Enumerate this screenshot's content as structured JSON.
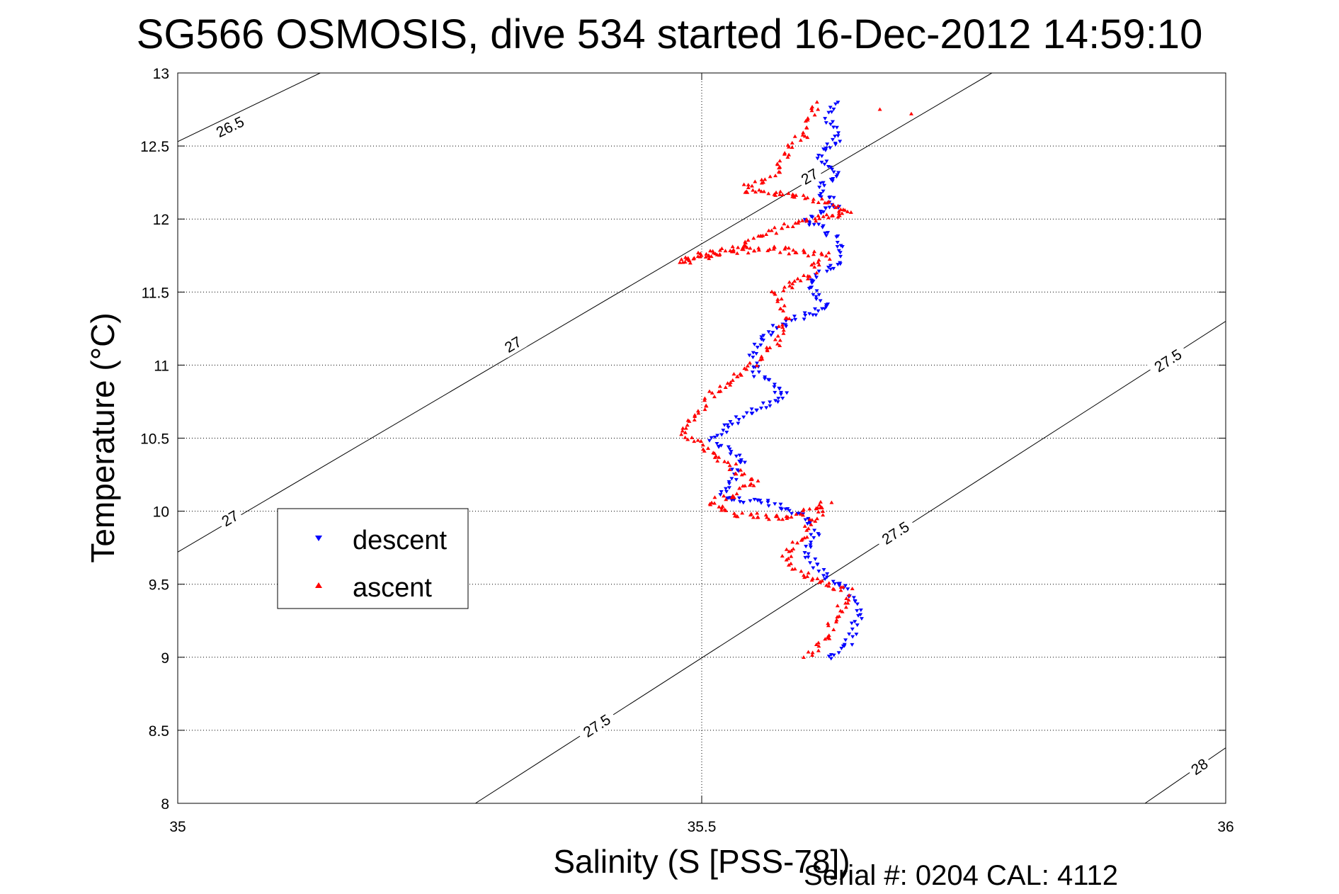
{
  "chart_data": {
    "type": "scatter",
    "title": "SG566 OSMOSIS, dive 534 started 16-Dec-2012 14:59:10",
    "xlabel": "Salinity (S [PSS-78])",
    "ylabel": "Temperature (°C)",
    "xlim": [
      35,
      36
    ],
    "ylim": [
      8,
      13
    ],
    "x_ticks": [
      35,
      35.5,
      36
    ],
    "x_tick_labels": [
      "35",
      "35.5",
      "36"
    ],
    "y_ticks": [
      8,
      8.5,
      9,
      9.5,
      10,
      10.5,
      11,
      11.5,
      12,
      12.5,
      13
    ],
    "y_tick_labels": [
      "8",
      "8.5",
      "9",
      "9.5",
      "10",
      "10.5",
      "11",
      "11.5",
      "12",
      "12.5",
      "13"
    ],
    "grid": true,
    "grid_style": "dotted",
    "legend": {
      "position": "left-middle",
      "entries": [
        "descent",
        "ascent"
      ]
    },
    "colors": {
      "descent": "#0000ff",
      "ascent": "#ff0000",
      "contour": "#000000",
      "grid": "#000000"
    },
    "series": [
      {
        "name": "descent",
        "marker": "downward-triangle",
        "color": "#0000ff",
        "path": [
          [
            35.62,
            9.0
          ],
          [
            35.64,
            9.1
          ],
          [
            35.65,
            9.3
          ],
          [
            35.64,
            9.45
          ],
          [
            35.62,
            9.55
          ],
          [
            35.6,
            9.7
          ],
          [
            35.61,
            9.85
          ],
          [
            35.6,
            9.95
          ],
          [
            35.57,
            10.05
          ],
          [
            35.52,
            10.1
          ],
          [
            35.53,
            10.25
          ],
          [
            35.54,
            10.35
          ],
          [
            35.51,
            10.5
          ],
          [
            35.54,
            10.65
          ],
          [
            35.58,
            10.8
          ],
          [
            35.55,
            10.95
          ],
          [
            35.55,
            11.1
          ],
          [
            35.57,
            11.25
          ],
          [
            35.62,
            11.4
          ],
          [
            35.6,
            11.55
          ],
          [
            35.63,
            11.7
          ],
          [
            35.63,
            11.85
          ],
          [
            35.6,
            12.0
          ],
          [
            35.63,
            12.1
          ],
          [
            35.61,
            12.2
          ],
          [
            35.63,
            12.3
          ],
          [
            35.61,
            12.45
          ],
          [
            35.63,
            12.55
          ],
          [
            35.62,
            12.7
          ],
          [
            35.63,
            12.8
          ]
        ]
      },
      {
        "name": "ascent",
        "marker": "upward-triangle",
        "color": "#ff0000",
        "path": [
          [
            35.6,
            9.0
          ],
          [
            35.62,
            9.15
          ],
          [
            35.63,
            9.3
          ],
          [
            35.64,
            9.45
          ],
          [
            35.6,
            9.55
          ],
          [
            35.58,
            9.7
          ],
          [
            35.6,
            9.85
          ],
          [
            35.62,
            10.05
          ],
          [
            35.58,
            9.95
          ],
          [
            35.53,
            9.98
          ],
          [
            35.51,
            10.05
          ],
          [
            35.55,
            10.2
          ],
          [
            35.52,
            10.35
          ],
          [
            35.5,
            10.45
          ],
          [
            35.48,
            10.55
          ],
          [
            35.5,
            10.7
          ],
          [
            35.51,
            10.8
          ],
          [
            35.53,
            10.9
          ],
          [
            35.55,
            11.0
          ],
          [
            35.57,
            11.15
          ],
          [
            35.58,
            11.3
          ],
          [
            35.57,
            11.5
          ],
          [
            35.6,
            11.6
          ],
          [
            35.62,
            11.75
          ],
          [
            35.56,
            11.8
          ],
          [
            35.5,
            11.75
          ],
          [
            35.48,
            11.7
          ],
          [
            35.53,
            11.8
          ],
          [
            35.58,
            11.95
          ],
          [
            35.64,
            12.05
          ],
          [
            35.6,
            12.15
          ],
          [
            35.54,
            12.2
          ],
          [
            35.57,
            12.3
          ],
          [
            35.58,
            12.45
          ],
          [
            35.6,
            12.6
          ],
          [
            35.61,
            12.8
          ]
        ],
        "outliers": [
          [
            35.67,
            12.75
          ],
          [
            35.7,
            12.72
          ]
        ]
      }
    ],
    "contours": [
      {
        "label": "26.5",
        "points": [
          [
            35.0,
            12.53
          ],
          [
            35.136,
            13.0
          ]
        ],
        "label_positions": [
          [
            35.05,
            12.63
          ]
        ]
      },
      {
        "label": "27",
        "points": [
          [
            35.0,
            9.72
          ],
          [
            35.777,
            13.0
          ]
        ],
        "label_positions": [
          [
            35.05,
            9.95
          ],
          [
            35.32,
            11.14
          ],
          [
            35.603,
            12.29
          ]
        ]
      },
      {
        "label": "27.5",
        "points": [
          [
            35.284,
            8.0
          ],
          [
            36.0,
            11.3
          ]
        ],
        "label_positions": [
          [
            35.4,
            8.53
          ],
          [
            35.685,
            9.85
          ],
          [
            35.945,
            11.03
          ]
        ]
      },
      {
        "label": "28",
        "points": [
          [
            35.923,
            8.0
          ],
          [
            36.0,
            8.38
          ]
        ],
        "label_positions": [
          [
            35.975,
            8.25
          ]
        ]
      }
    ]
  },
  "footer": {
    "text": "Serial #: 0204  CAL: 4112"
  }
}
